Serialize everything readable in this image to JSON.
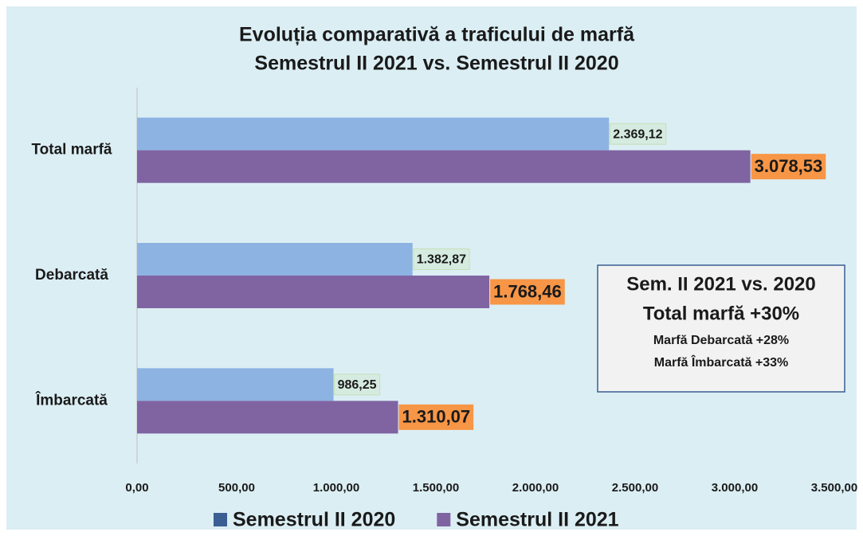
{
  "chart_data": {
    "type": "hbar",
    "title": "Evoluția comparativă a traficului de marfă",
    "subtitle": "Semestrul II 2021 vs. Semestrul II 2020",
    "categories": [
      "Total marfă",
      "Debarcată",
      "Îmbarcată"
    ],
    "series": [
      {
        "name": "Semestrul II 2020",
        "color": "#8db3e2",
        "legend_color": "#3b5f93",
        "label_fill": "#d6ebe0",
        "values": [
          2369.12,
          1382.87,
          986.25
        ],
        "value_labels": [
          "2.369,12",
          "1.382,87",
          "986,25"
        ]
      },
      {
        "name": "Semestrul II 2021",
        "color": "#8064a2",
        "legend_color": "#8064a2",
        "label_fill": "#f79646",
        "values": [
          3078.53,
          1768.46,
          1310.07
        ],
        "value_labels": [
          "3.078,53",
          "1.768,46",
          "1.310,07"
        ]
      }
    ],
    "xlim": [
      0,
      3500
    ],
    "xticks": [
      {
        "value": 0,
        "label": "0,00"
      },
      {
        "value": 500,
        "label": "500,00"
      },
      {
        "value": 1000,
        "label": "1.000,00"
      },
      {
        "value": 1500,
        "label": "1.500,00"
      },
      {
        "value": 2000,
        "label": "2.000,00"
      },
      {
        "value": 2500,
        "label": "2.500,00"
      },
      {
        "value": 3000,
        "label": "3.000,00"
      },
      {
        "value": 3500,
        "label": "3.500,00"
      }
    ],
    "legend": "bottom",
    "annotation": [
      "Sem. II 2021 vs. 2020",
      "Total marfă +30%",
      "Marfă Debarcată +28%",
      "Marfă Îmbarcată +33%"
    ]
  }
}
